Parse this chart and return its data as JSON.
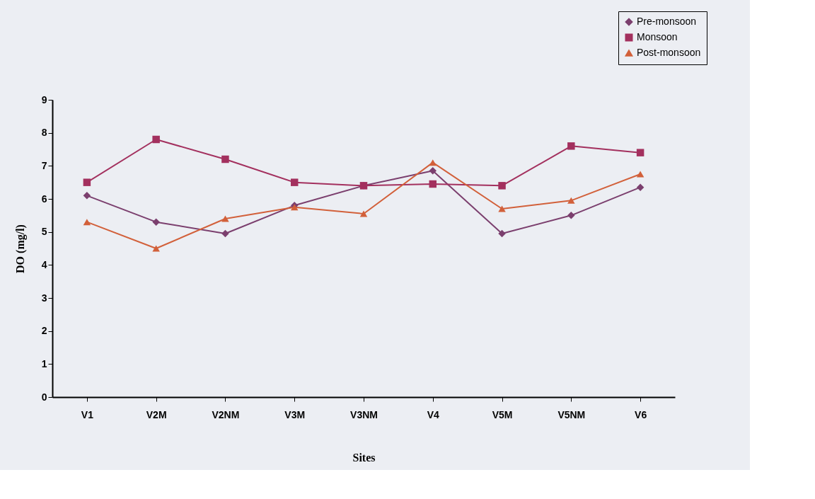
{
  "chart_data": {
    "type": "line",
    "xlabel": "Sites",
    "ylabel": "DO (mg/l)",
    "categories": [
      "V1",
      "V2M",
      "V2NM",
      "V3M",
      "V3NM",
      "V4",
      "V5M",
      "V5NM",
      "V6"
    ],
    "series": [
      {
        "name": "Pre-monsoon",
        "color": "#7b3f6e",
        "marker": "diamond",
        "values": [
          6.1,
          5.3,
          4.95,
          5.8,
          6.4,
          6.85,
          4.95,
          5.5,
          6.35
        ]
      },
      {
        "name": "Monsoon",
        "color": "#a3305e",
        "marker": "square",
        "values": [
          6.5,
          7.8,
          7.2,
          6.5,
          6.4,
          6.45,
          6.4,
          7.6,
          7.4
        ]
      },
      {
        "name": "Post-monsoon",
        "color": "#d2603a",
        "marker": "triangle",
        "values": [
          5.3,
          4.5,
          5.4,
          5.75,
          5.55,
          7.1,
          5.7,
          5.95,
          6.75
        ]
      }
    ],
    "ylim": [
      0,
      9
    ],
    "yticks": [
      0,
      1,
      2,
      3,
      4,
      5,
      6,
      7,
      8,
      9
    ],
    "grid": false,
    "legend": "top right",
    "line_style": "solid"
  }
}
